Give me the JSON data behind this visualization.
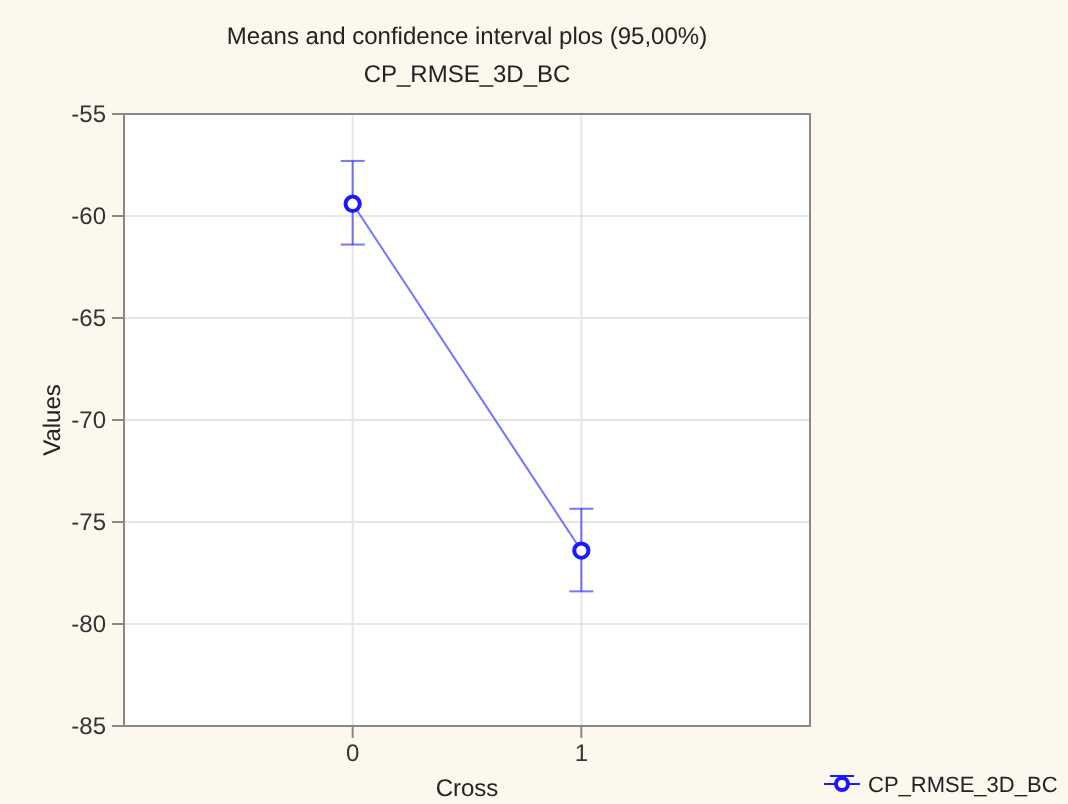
{
  "chart_data": {
    "type": "line",
    "title": "Means and confidence interval plos (95,00%)",
    "subtitle": "CP_RMSE_3D_BC",
    "xlabel": "Cross",
    "ylabel": "Values",
    "x": [
      0,
      1
    ],
    "series": [
      {
        "name": "CP_RMSE_3D_BC",
        "color": "#1a1aff",
        "values": [
          -59.4,
          -76.4
        ],
        "errors": [
          [
            -61.4,
            -57.3
          ],
          [
            -78.4,
            -74.35
          ]
        ]
      }
    ],
    "xlim": [
      -1,
      2
    ],
    "xticks": [
      0,
      1
    ],
    "ylim": [
      -85,
      -55
    ],
    "yticks": [
      -85,
      -80,
      -75,
      -70,
      -65,
      -60,
      -55
    ],
    "grid": true,
    "legend": "bottom right",
    "marker": "circle",
    "line_style": "solid"
  }
}
